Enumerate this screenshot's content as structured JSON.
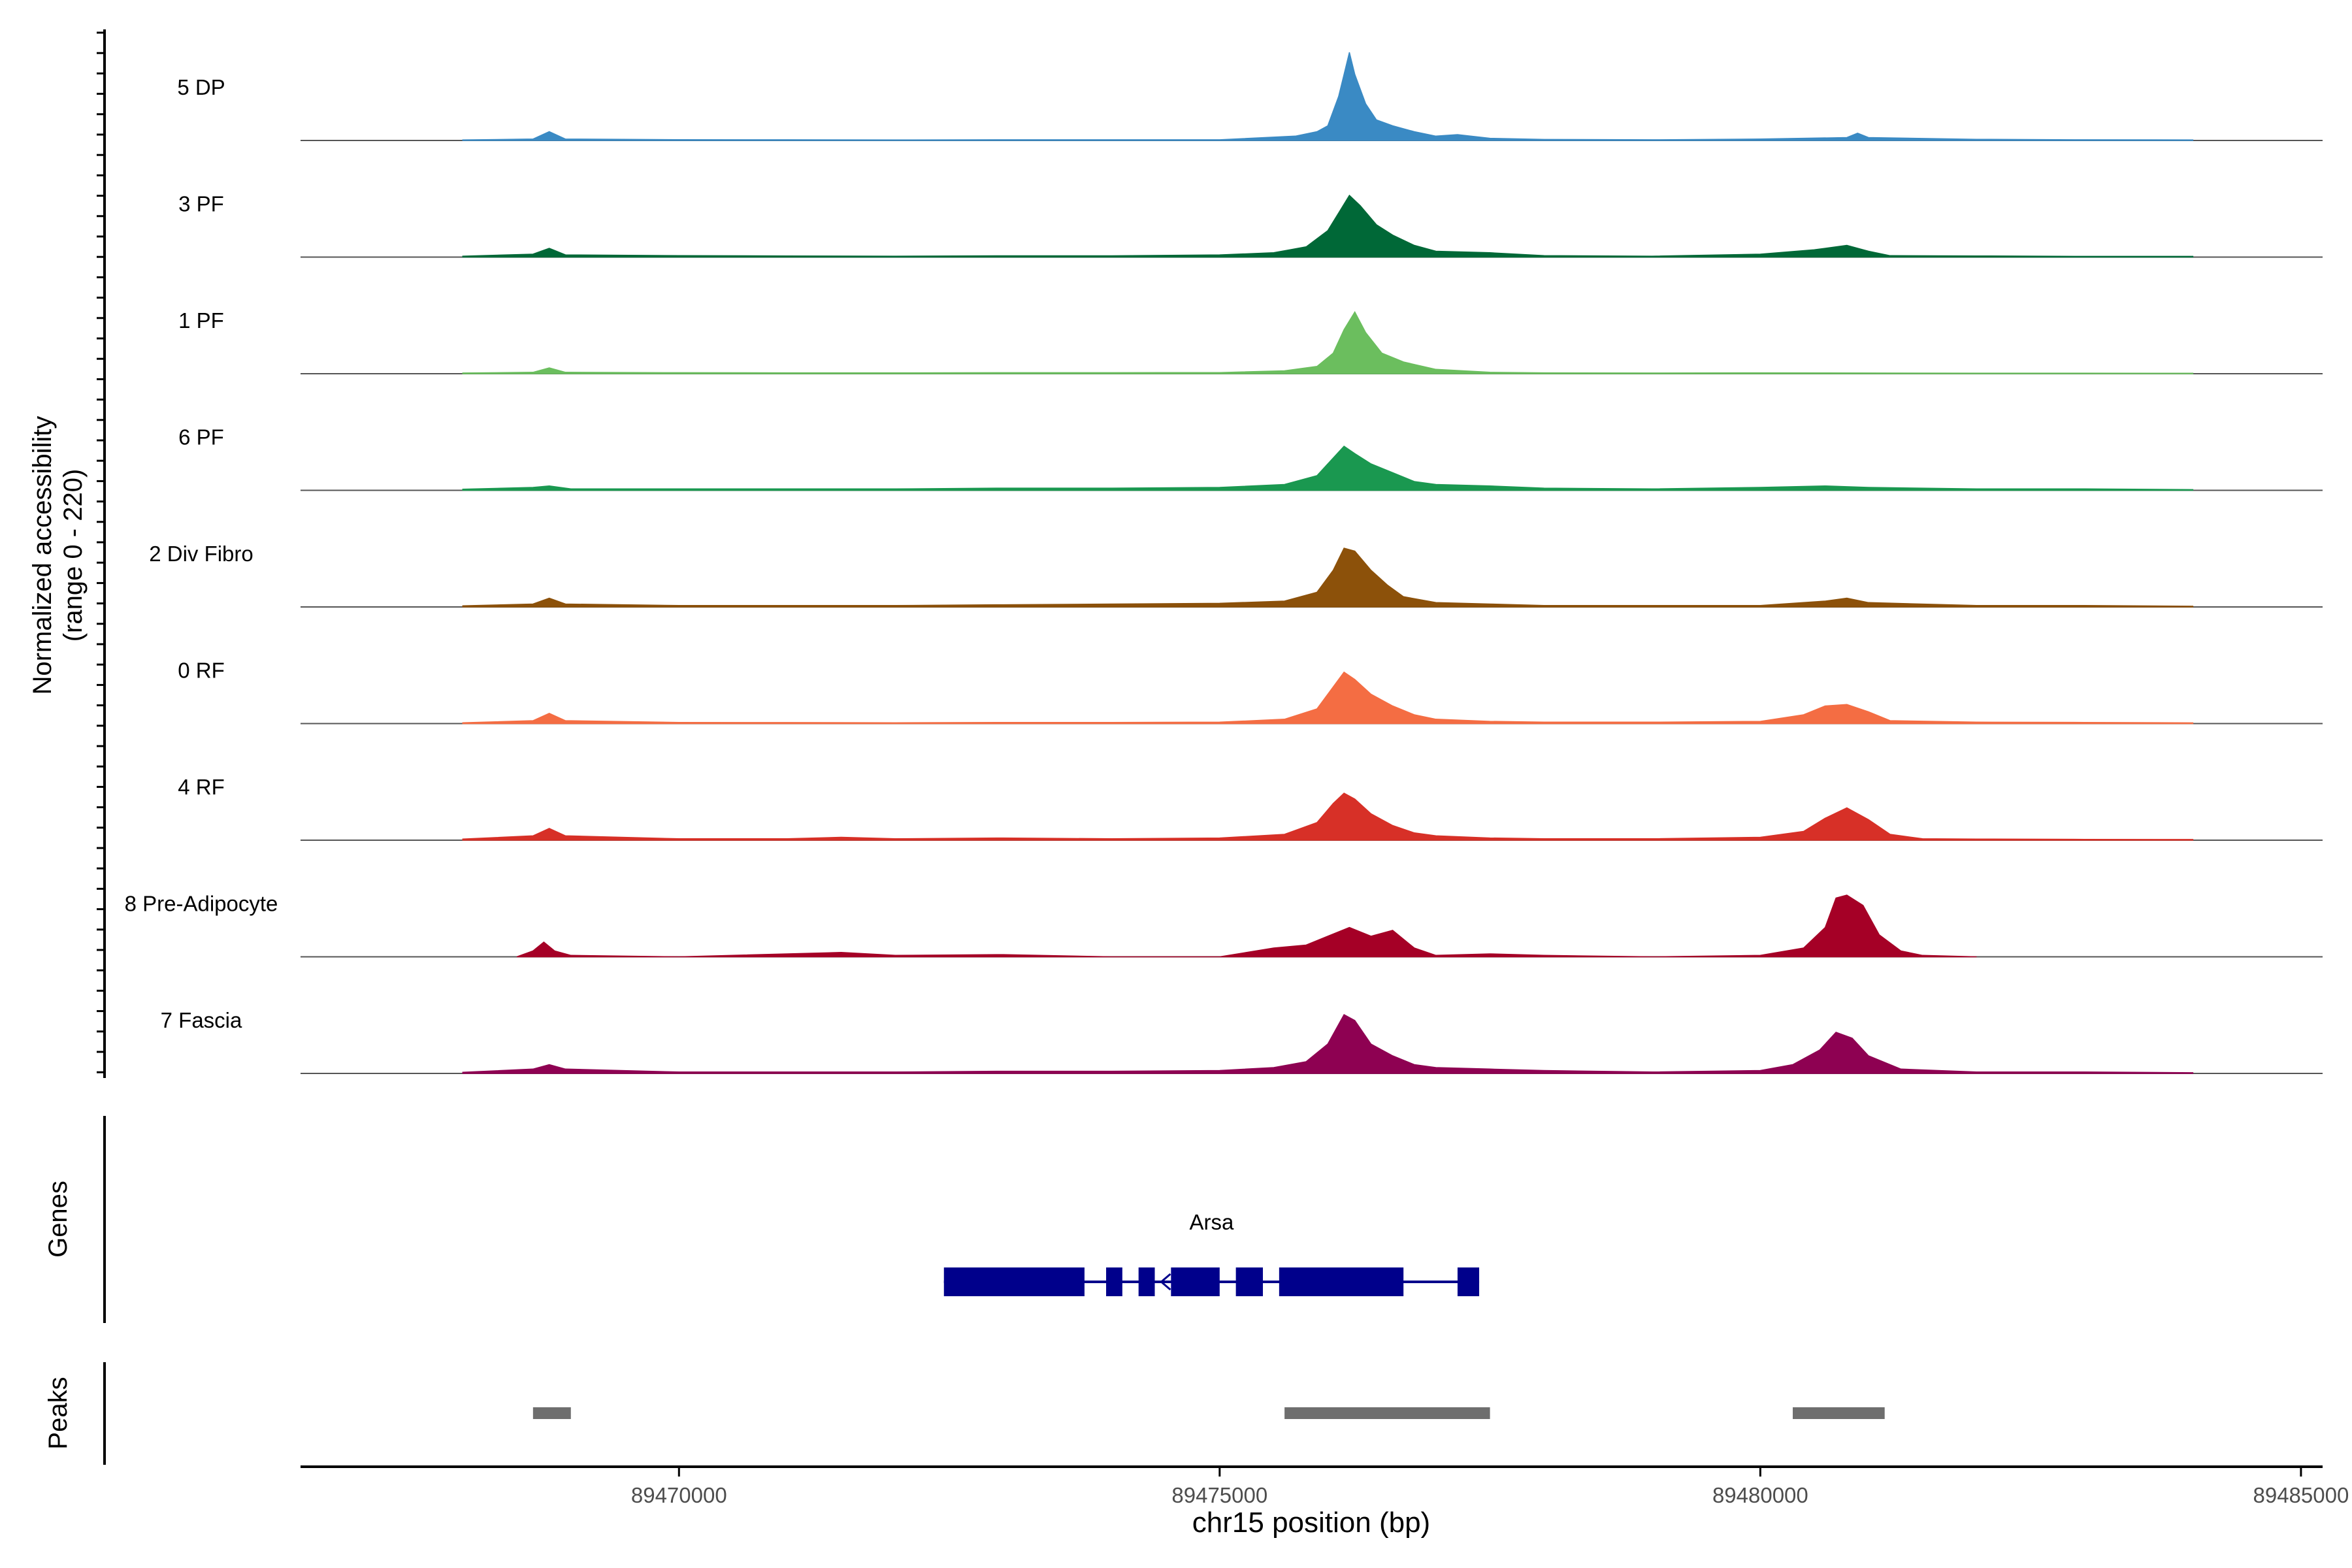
{
  "chart_data": {
    "type": "area",
    "region": "chr15",
    "x_range": [
      89466500,
      89485200
    ],
    "xlabel": "chr15 position (bp)",
    "x_ticks": [
      89470000,
      89475000,
      89480000,
      89485000
    ],
    "ylabel_line1": "Normalized accessibility",
    "ylabel_line2": "(range 0 - 220)",
    "y_range": [
      0,
      220
    ],
    "tracks": [
      {
        "name": "5 DP",
        "color": "#3A8AC4",
        "values": [
          [
            89468000,
            0.4
          ],
          [
            89468650,
            1.0
          ],
          [
            89468800,
            6.0
          ],
          [
            89468950,
            1.0
          ],
          [
            89470000,
            0.6
          ],
          [
            89471000,
            0.5
          ],
          [
            89472000,
            0.4
          ],
          [
            89473000,
            0.5
          ],
          [
            89474000,
            0.5
          ],
          [
            89475000,
            0.5
          ],
          [
            89475700,
            3.0
          ],
          [
            89475900,
            6.0
          ],
          [
            89476000,
            10.0
          ],
          [
            89476100,
            30.0
          ],
          [
            89476150,
            45.0
          ],
          [
            89476200,
            60.0
          ],
          [
            89476250,
            45.0
          ],
          [
            89476350,
            25.0
          ],
          [
            89476450,
            14.0
          ],
          [
            89476600,
            10.0
          ],
          [
            89476800,
            6.0
          ],
          [
            89477000,
            3.0
          ],
          [
            89477200,
            4.0
          ],
          [
            89477500,
            1.5
          ],
          [
            89478000,
            0.7
          ],
          [
            89479000,
            0.5
          ],
          [
            89480000,
            1.0
          ],
          [
            89480800,
            2.0
          ],
          [
            89480900,
            5.0
          ],
          [
            89481000,
            2.0
          ],
          [
            89482000,
            0.8
          ],
          [
            89483000,
            0.5
          ],
          [
            89484000,
            0.4
          ]
        ]
      },
      {
        "name": "3 PF",
        "color": "#006837",
        "values": [
          [
            89468000,
            0.6
          ],
          [
            89468650,
            2.0
          ],
          [
            89468800,
            6.0
          ],
          [
            89468950,
            1.5
          ],
          [
            89470000,
            1.0
          ],
          [
            89471000,
            0.8
          ],
          [
            89472000,
            0.6
          ],
          [
            89473000,
            0.9
          ],
          [
            89474000,
            0.9
          ],
          [
            89475000,
            1.5
          ],
          [
            89475500,
            3.0
          ],
          [
            89475800,
            7.0
          ],
          [
            89476000,
            18.0
          ],
          [
            89476100,
            30.0
          ],
          [
            89476200,
            42.0
          ],
          [
            89476300,
            35.0
          ],
          [
            89476450,
            22.0
          ],
          [
            89476600,
            15.0
          ],
          [
            89476800,
            8.0
          ],
          [
            89477000,
            4.0
          ],
          [
            89477500,
            3.0
          ],
          [
            89478000,
            1.0
          ],
          [
            89479000,
            0.6
          ],
          [
            89480000,
            2.0
          ],
          [
            89480500,
            5.0
          ],
          [
            89480800,
            8.0
          ],
          [
            89481000,
            4.0
          ],
          [
            89481200,
            1.0
          ],
          [
            89482000,
            0.8
          ],
          [
            89483000,
            0.5
          ],
          [
            89484000,
            0.5
          ]
        ]
      },
      {
        "name": "1 PF",
        "color": "#6BBE5E",
        "values": [
          [
            89468000,
            0.5
          ],
          [
            89468650,
            1.0
          ],
          [
            89468800,
            4.0
          ],
          [
            89468950,
            1.0
          ],
          [
            89470000,
            0.7
          ],
          [
            89471000,
            0.6
          ],
          [
            89472000,
            0.6
          ],
          [
            89473000,
            0.7
          ],
          [
            89474000,
            0.7
          ],
          [
            89475000,
            0.8
          ],
          [
            89475600,
            2.0
          ],
          [
            89475900,
            5.0
          ],
          [
            89476050,
            14.0
          ],
          [
            89476150,
            30.0
          ],
          [
            89476250,
            42.0
          ],
          [
            89476350,
            28.0
          ],
          [
            89476500,
            14.0
          ],
          [
            89476700,
            8.0
          ],
          [
            89477000,
            3.0
          ],
          [
            89477500,
            1.0
          ],
          [
            89478000,
            0.6
          ],
          [
            89479000,
            0.5
          ],
          [
            89480000,
            0.6
          ],
          [
            89481000,
            0.5
          ],
          [
            89482000,
            0.4
          ],
          [
            89483000,
            0.4
          ],
          [
            89484000,
            0.3
          ]
        ]
      },
      {
        "name": "6 PF",
        "color": "#1A9850",
        "values": [
          [
            89468000,
            0.8
          ],
          [
            89468650,
            2.0
          ],
          [
            89468800,
            3.0
          ],
          [
            89469000,
            1.0
          ],
          [
            89470000,
            1.0
          ],
          [
            89471000,
            1.0
          ],
          [
            89472000,
            1.0
          ],
          [
            89473000,
            1.5
          ],
          [
            89474000,
            1.5
          ],
          [
            89475000,
            2.0
          ],
          [
            89475600,
            4.0
          ],
          [
            89475900,
            10.0
          ],
          [
            89476050,
            22.0
          ],
          [
            89476150,
            30.0
          ],
          [
            89476250,
            25.0
          ],
          [
            89476400,
            18.0
          ],
          [
            89476600,
            12.0
          ],
          [
            89476800,
            6.0
          ],
          [
            89477000,
            4.0
          ],
          [
            89477500,
            3.0
          ],
          [
            89478000,
            1.5
          ],
          [
            89479000,
            1.0
          ],
          [
            89480000,
            2.0
          ],
          [
            89480600,
            3.0
          ],
          [
            89481000,
            2.0
          ],
          [
            89482000,
            1.0
          ],
          [
            89483000,
            1.0
          ],
          [
            89484000,
            0.5
          ]
        ]
      },
      {
        "name": "2 Div Fibro",
        "color": "#8C510A",
        "values": [
          [
            89468000,
            0.8
          ],
          [
            89468650,
            2.0
          ],
          [
            89468800,
            6.0
          ],
          [
            89468950,
            2.0
          ],
          [
            89470000,
            1.0
          ],
          [
            89471000,
            1.0
          ],
          [
            89472000,
            1.0
          ],
          [
            89473000,
            1.5
          ],
          [
            89474000,
            2.0
          ],
          [
            89475000,
            2.5
          ],
          [
            89475600,
            4.0
          ],
          [
            89475900,
            10.0
          ],
          [
            89476050,
            25.0
          ],
          [
            89476150,
            40.0
          ],
          [
            89476250,
            38.0
          ],
          [
            89476400,
            25.0
          ],
          [
            89476550,
            15.0
          ],
          [
            89476700,
            7.0
          ],
          [
            89477000,
            3.0
          ],
          [
            89477500,
            2.0
          ],
          [
            89478000,
            1.0
          ],
          [
            89479000,
            1.0
          ],
          [
            89480000,
            1.0
          ],
          [
            89480600,
            4.0
          ],
          [
            89480800,
            6.0
          ],
          [
            89481000,
            3.0
          ],
          [
            89482000,
            1.0
          ],
          [
            89483000,
            1.0
          ],
          [
            89484000,
            0.5
          ]
        ]
      },
      {
        "name": "0 RF",
        "color": "#F46D43",
        "values": [
          [
            89468000,
            0.6
          ],
          [
            89468650,
            2.0
          ],
          [
            89468800,
            7.0
          ],
          [
            89468950,
            2.0
          ],
          [
            89470000,
            0.8
          ],
          [
            89471000,
            0.7
          ],
          [
            89472000,
            0.6
          ],
          [
            89473000,
            0.8
          ],
          [
            89474000,
            0.8
          ],
          [
            89475000,
            1.0
          ],
          [
            89475600,
            3.0
          ],
          [
            89475900,
            10.0
          ],
          [
            89476050,
            25.0
          ],
          [
            89476150,
            35.0
          ],
          [
            89476250,
            30.0
          ],
          [
            89476400,
            20.0
          ],
          [
            89476600,
            12.0
          ],
          [
            89476800,
            6.0
          ],
          [
            89477000,
            3.0
          ],
          [
            89477500,
            1.5
          ],
          [
            89478000,
            1.0
          ],
          [
            89479000,
            1.0
          ],
          [
            89480000,
            1.5
          ],
          [
            89480400,
            6.0
          ],
          [
            89480600,
            12.0
          ],
          [
            89480800,
            13.0
          ],
          [
            89481000,
            8.0
          ],
          [
            89481200,
            2.0
          ],
          [
            89482000,
            1.0
          ],
          [
            89483000,
            0.8
          ],
          [
            89484000,
            0.5
          ]
        ]
      },
      {
        "name": "4 RF",
        "color": "#D73027",
        "values": [
          [
            89468000,
            0.8
          ],
          [
            89468650,
            3.0
          ],
          [
            89468800,
            8.0
          ],
          [
            89468950,
            3.0
          ],
          [
            89470000,
            1.0
          ],
          [
            89471000,
            1.0
          ],
          [
            89471500,
            2.0
          ],
          [
            89472000,
            1.0
          ],
          [
            89473000,
            1.5
          ],
          [
            89474000,
            1.0
          ],
          [
            89475000,
            1.5
          ],
          [
            89475600,
            4.0
          ],
          [
            89475900,
            12.0
          ],
          [
            89476050,
            25.0
          ],
          [
            89476150,
            32.0
          ],
          [
            89476250,
            28.0
          ],
          [
            89476400,
            18.0
          ],
          [
            89476600,
            10.0
          ],
          [
            89476800,
            5.0
          ],
          [
            89477000,
            3.0
          ],
          [
            89477500,
            1.5
          ],
          [
            89478000,
            1.0
          ],
          [
            89479000,
            1.0
          ],
          [
            89480000,
            2.0
          ],
          [
            89480400,
            6.0
          ],
          [
            89480600,
            15.0
          ],
          [
            89480800,
            22.0
          ],
          [
            89481000,
            14.0
          ],
          [
            89481200,
            4.0
          ],
          [
            89481500,
            1.0
          ],
          [
            89482000,
            0.8
          ],
          [
            89483000,
            0.6
          ],
          [
            89484000,
            0.5
          ]
        ]
      },
      {
        "name": "8 Pre-Adipocyte",
        "color": "#A50026",
        "values": [
          [
            89468500,
            0.0
          ],
          [
            89468650,
            4.0
          ],
          [
            89468750,
            10.0
          ],
          [
            89468850,
            4.0
          ],
          [
            89469000,
            1.0
          ],
          [
            89470000,
            0.0
          ],
          [
            89471000,
            2.0
          ],
          [
            89471500,
            3.0
          ],
          [
            89472000,
            1.0
          ],
          [
            89473000,
            1.5
          ],
          [
            89474000,
            0.0
          ],
          [
            89475000,
            0.0
          ],
          [
            89475500,
            6.0
          ],
          [
            89475800,
            8.0
          ],
          [
            89476000,
            14.0
          ],
          [
            89476200,
            20.0
          ],
          [
            89476400,
            14.0
          ],
          [
            89476600,
            18.0
          ],
          [
            89476800,
            6.0
          ],
          [
            89477000,
            1.0
          ],
          [
            89477500,
            2.0
          ],
          [
            89478000,
            1.0
          ],
          [
            89479000,
            0.0
          ],
          [
            89480000,
            1.0
          ],
          [
            89480400,
            6.0
          ],
          [
            89480600,
            20.0
          ],
          [
            89480700,
            40.0
          ],
          [
            89480800,
            42.0
          ],
          [
            89480950,
            35.0
          ],
          [
            89481100,
            15.0
          ],
          [
            89481300,
            4.0
          ],
          [
            89481500,
            1.0
          ],
          [
            89482000,
            0.0
          ]
        ]
      },
      {
        "name": "7 Fascia",
        "color": "#8E0152",
        "values": [
          [
            89468000,
            0.8
          ],
          [
            89468650,
            3.0
          ],
          [
            89468800,
            6.0
          ],
          [
            89468950,
            3.0
          ],
          [
            89470000,
            1.0
          ],
          [
            89471000,
            1.0
          ],
          [
            89472000,
            1.0
          ],
          [
            89473000,
            1.5
          ],
          [
            89474000,
            1.5
          ],
          [
            89475000,
            2.0
          ],
          [
            89475500,
            4.0
          ],
          [
            89475800,
            8.0
          ],
          [
            89476000,
            20.0
          ],
          [
            89476150,
            40.0
          ],
          [
            89476250,
            36.0
          ],
          [
            89476400,
            20.0
          ],
          [
            89476600,
            12.0
          ],
          [
            89476800,
            6.0
          ],
          [
            89477000,
            4.0
          ],
          [
            89477500,
            3.0
          ],
          [
            89478000,
            2.0
          ],
          [
            89479000,
            1.0
          ],
          [
            89480000,
            2.0
          ],
          [
            89480300,
            6.0
          ],
          [
            89480550,
            16.0
          ],
          [
            89480700,
            28.0
          ],
          [
            89480850,
            24.0
          ],
          [
            89481000,
            12.0
          ],
          [
            89481300,
            3.0
          ],
          [
            89482000,
            1.0
          ],
          [
            89483000,
            1.0
          ],
          [
            89484000,
            0.5
          ]
        ]
      }
    ],
    "genes_label": "Genes",
    "gene": {
      "name": "Arsa",
      "strand": "-",
      "start": 89472450,
      "end": 89477400,
      "exons": [
        [
          89472450,
          89473750
        ],
        [
          89473950,
          89474100
        ],
        [
          89474250,
          89474400
        ],
        [
          89474550,
          89475000
        ],
        [
          89475150,
          89475400
        ],
        [
          89475550,
          89476700
        ],
        [
          89477200,
          89477400
        ]
      ]
    },
    "peaks_label": "Peaks",
    "peaks": [
      [
        89468650,
        89469000
      ],
      [
        89475600,
        89477500
      ],
      [
        89480300,
        89481150
      ]
    ]
  }
}
